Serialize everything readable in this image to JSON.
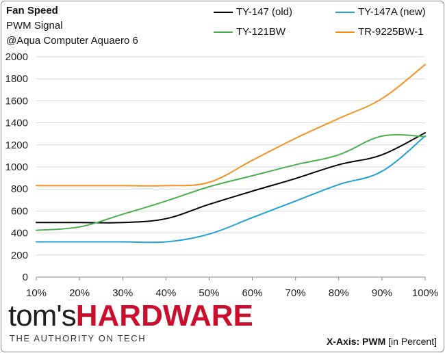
{
  "header": {
    "title": "Fan Speed",
    "subtitle": "PWM Signal",
    "subtitle2": "@Aqua Computer Aquaero 6"
  },
  "branding": {
    "logo_part1": "tom's",
    "logo_part2": "HARDWARE",
    "tagline": "THE AUTHORITY ON TECH"
  },
  "footer": {
    "axis_note_bold": "X-Axis: PWM",
    "axis_note_rest": "[in Percent]"
  },
  "chart_data": {
    "type": "line",
    "x": [
      10,
      20,
      30,
      40,
      50,
      60,
      70,
      80,
      90,
      100
    ],
    "xtick_labels": [
      "10%",
      "20%",
      "30%",
      "40%",
      "50%",
      "60%",
      "70%",
      "80%",
      "90%",
      "100%"
    ],
    "yticks": [
      0,
      200,
      400,
      600,
      800,
      1000,
      1200,
      1400,
      1600,
      1800,
      2000
    ],
    "ylim": [
      0,
      2000
    ],
    "xlim": [
      10,
      100
    ],
    "grid": "horizontal",
    "legend_position": "top-right",
    "series": [
      {
        "name": "TY-147 (old)",
        "color": "#000000",
        "values": [
          495,
          495,
          495,
          530,
          660,
          780,
          895,
          1020,
          1110,
          1310
        ]
      },
      {
        "name": "TY-147A (new)",
        "color": "#1ba1d6",
        "values": [
          320,
          320,
          320,
          320,
          390,
          540,
          690,
          840,
          960,
          1280
        ]
      },
      {
        "name": "TY-121BW",
        "color": "#4caf50",
        "values": [
          425,
          455,
          570,
          690,
          820,
          920,
          1020,
          1110,
          1280,
          1275
        ]
      },
      {
        "name": "TR-9225BW-1",
        "color": "#f39221",
        "values": [
          830,
          830,
          830,
          830,
          860,
          1060,
          1260,
          1440,
          1620,
          1930
        ]
      }
    ]
  }
}
